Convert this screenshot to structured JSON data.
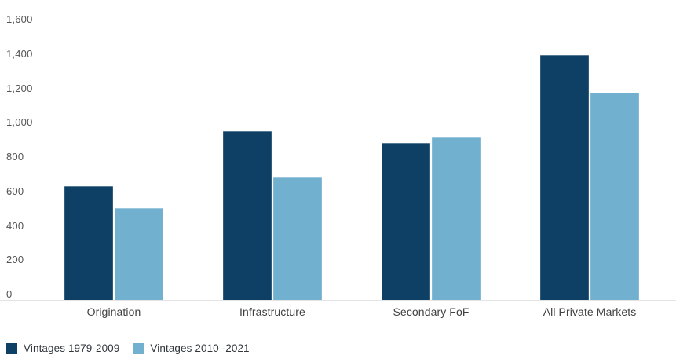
{
  "chart_data": {
    "type": "bar",
    "title": "",
    "xlabel": "",
    "ylabel": "",
    "categories": [
      "Origination",
      "Infrastructure",
      "Secondary FoF",
      "All Private Markets"
    ],
    "series": [
      {
        "name": "Vintages 1979-2009",
        "color": "#0e4066",
        "values": [
          630,
          950,
          880,
          1395
        ]
      },
      {
        "name": "Vintages 2010 -2021",
        "color": "#71b0cf",
        "values": [
          505,
          680,
          915,
          1175
        ]
      }
    ],
    "ylim": [
      0,
      1600
    ],
    "ytick_step": 200,
    "yticks": [
      "0",
      "200",
      "400",
      "600",
      "800",
      "1,000",
      "1,200",
      "1,400",
      "1,600"
    ],
    "grid": false,
    "legend_position": "bottom-left",
    "axis_line_color": "#e3e4e5",
    "tick_label_color": "#545454",
    "category_label_color": "#404040",
    "legend_text_color": "#30363c",
    "background_color": "#ffffff"
  }
}
